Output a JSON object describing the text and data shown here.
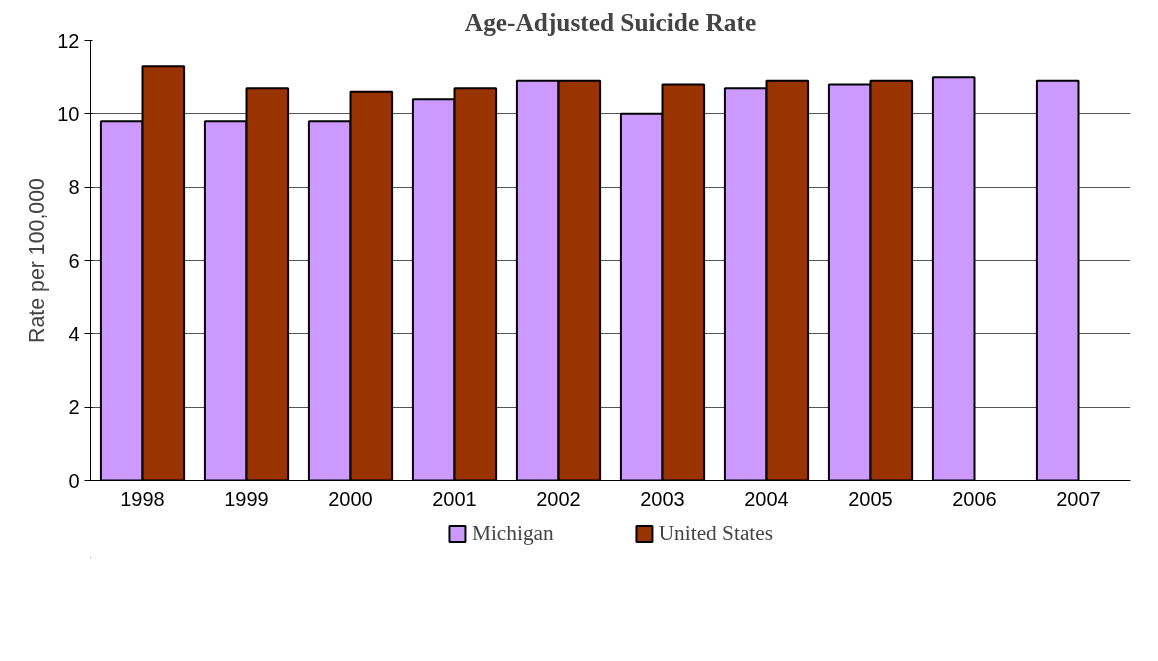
{
  "chart_data": {
    "type": "bar",
    "title": "Age-Adjusted Suicide Rate",
    "ylabel": "Rate per 100,000",
    "categories": [
      "1998",
      "1999",
      "2000",
      "2001",
      "2002",
      "2003",
      "2004",
      "2005",
      "2006",
      "2007"
    ],
    "series": [
      {
        "name": "Michigan",
        "color": "#cc99ff",
        "values": [
          9.8,
          9.8,
          9.8,
          10.4,
          10.9,
          10.0,
          10.7,
          10.8,
          11.0,
          10.9
        ]
      },
      {
        "name": "United States",
        "color": "#993300",
        "values": [
          11.3,
          10.7,
          10.6,
          10.7,
          10.9,
          10.8,
          10.9,
          10.9,
          null,
          null
        ]
      }
    ],
    "ylim": [
      0,
      12
    ],
    "yticks": [
      0,
      2,
      4,
      6,
      8,
      10,
      12
    ],
    "grid": "y",
    "legend": "bottom"
  }
}
